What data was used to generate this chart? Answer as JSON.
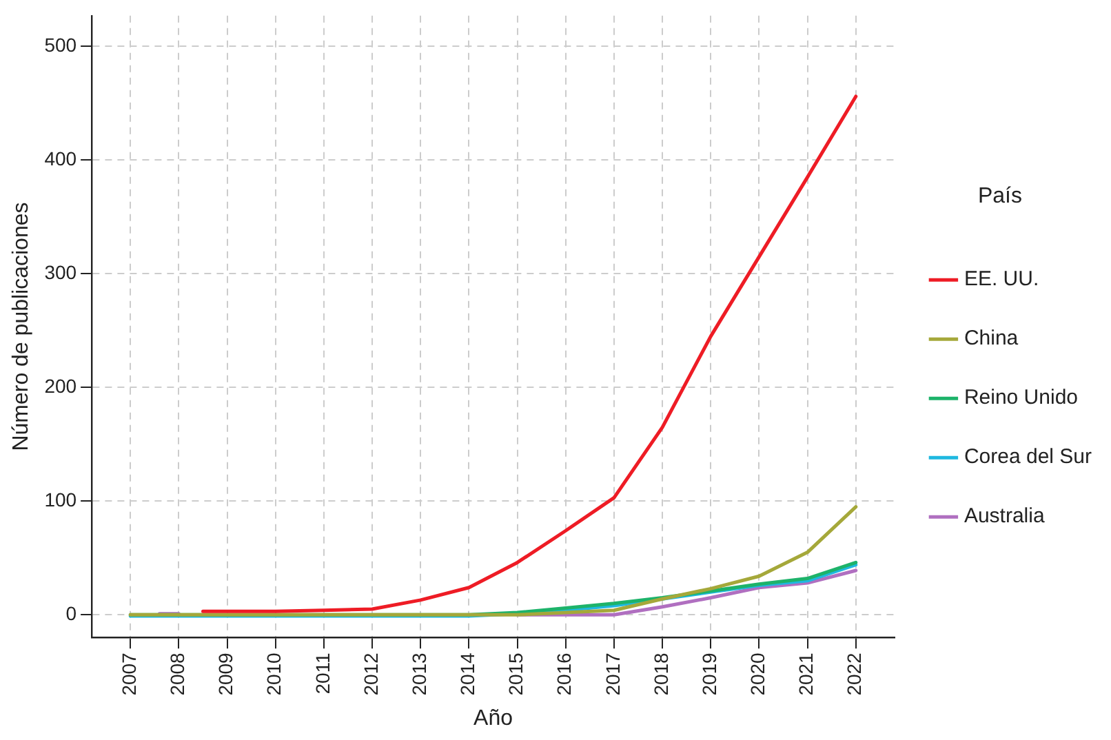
{
  "chart_data": {
    "type": "line",
    "xlabel": "Año",
    "ylabel": "Número de publicaciones",
    "legend_title": "País",
    "xlim": [
      2006.2,
      2022.8
    ],
    "xticks": [
      2007,
      2008,
      2009,
      2010,
      2011,
      2012,
      2013,
      2014,
      2015,
      2016,
      2017,
      2018,
      2019,
      2020,
      2021,
      2022
    ],
    "ylim": [
      -20,
      527
    ],
    "yticks": [
      0,
      100,
      200,
      300,
      400,
      500
    ],
    "grid": true,
    "legend": "right",
    "marker": "none",
    "line_style": "solid",
    "series": [
      {
        "name": "EE. UU.",
        "color": "#ee1c25",
        "x": [
          2008.5,
          2009,
          2010,
          2011,
          2012,
          2013,
          2014,
          2015,
          2016,
          2017,
          2018,
          2019,
          2020,
          2021,
          2022
        ],
        "values": [
          3,
          3,
          3,
          4,
          5,
          13,
          24,
          46,
          74,
          103,
          165,
          245,
          315,
          385,
          456
        ]
      },
      {
        "name": "China",
        "color": "#a5a83a",
        "x": [
          2007,
          2008,
          2009,
          2010,
          2011,
          2012,
          2013,
          2014,
          2015,
          2016,
          2017,
          2018,
          2019,
          2020,
          2021,
          2022
        ],
        "values": [
          0,
          0,
          0,
          0,
          0,
          0,
          0,
          0,
          0,
          2,
          4,
          14,
          23,
          34,
          55,
          95
        ]
      },
      {
        "name": "Reino Unido",
        "color": "#1db36a",
        "x": [
          2007,
          2008,
          2009,
          2010,
          2011,
          2012,
          2013,
          2014,
          2015,
          2016,
          2017,
          2018,
          2019,
          2020,
          2021,
          2022
        ],
        "values": [
          0,
          0,
          0,
          0,
          0,
          0,
          0,
          0,
          2,
          6,
          10,
          15,
          21,
          27,
          32,
          46
        ]
      },
      {
        "name": "Corea del Sur",
        "color": "#1fb8e0",
        "x": [
          2007,
          2008,
          2009,
          2010,
          2011,
          2012,
          2013,
          2014,
          2015,
          2016,
          2017,
          2018,
          2019,
          2020,
          2021,
          2022
        ],
        "values": [
          -1,
          -1,
          -1,
          -1,
          -1,
          -1,
          -1,
          -1,
          1,
          4,
          8,
          14,
          20,
          26,
          30,
          44
        ]
      },
      {
        "name": "Australia",
        "color": "#b06fc0",
        "x": [
          2007.6,
          2008,
          2009,
          2010,
          2011,
          2012,
          2013,
          2014,
          2015,
          2016,
          2017,
          2018,
          2019,
          2020,
          2021,
          2022
        ],
        "values": [
          1,
          1,
          null,
          null,
          null,
          null,
          null,
          null,
          0,
          0,
          0,
          7,
          15,
          24,
          28,
          39
        ]
      }
    ]
  }
}
